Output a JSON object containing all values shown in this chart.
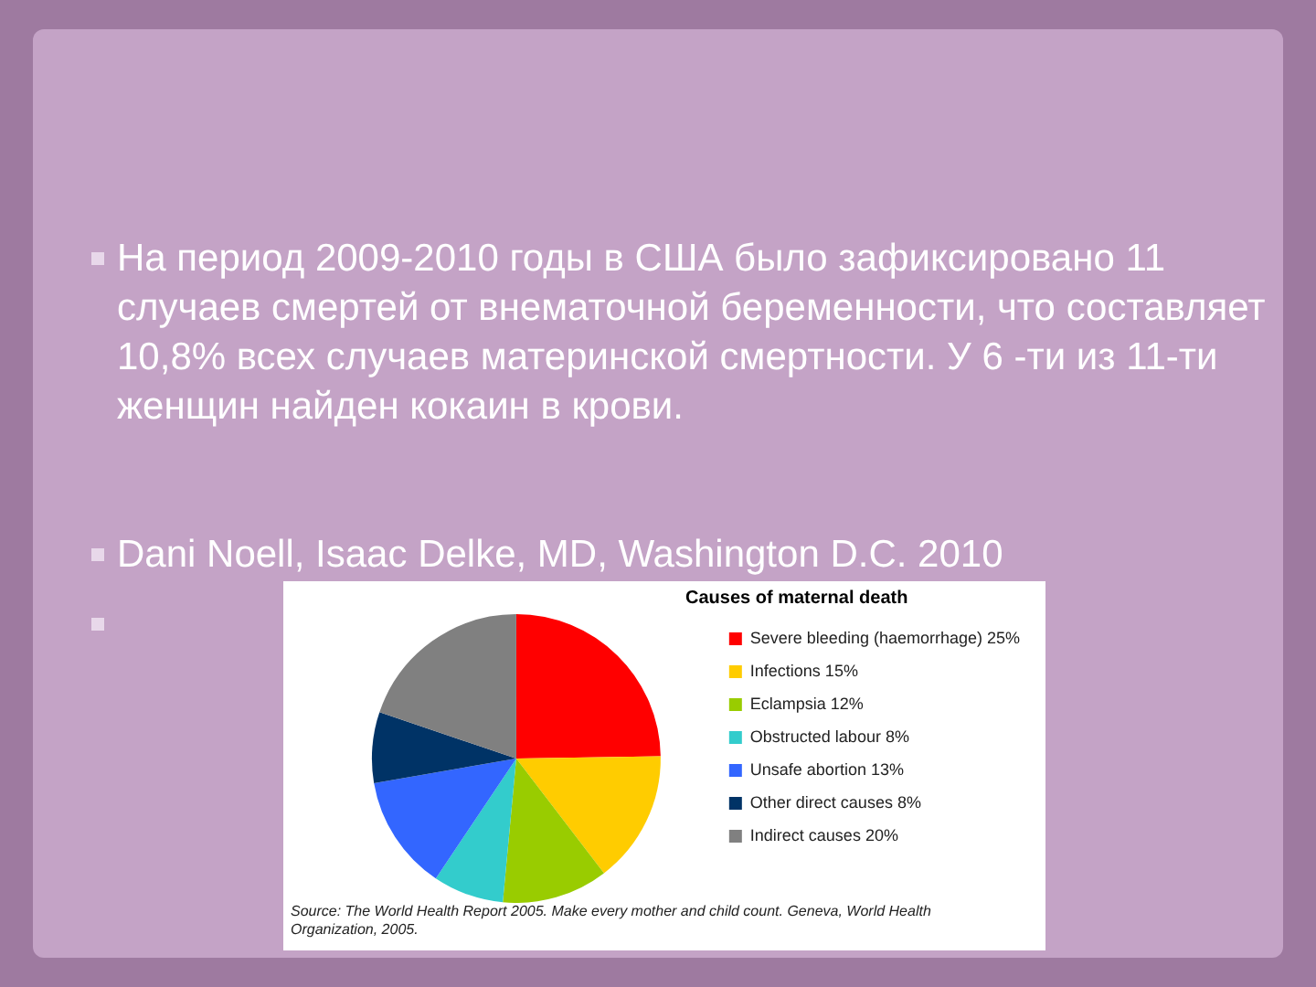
{
  "chart_data": {
    "type": "pie",
    "title": "Causes of maternal death",
    "categories": [
      "Severe bleeding (haemorrhage) 25%",
      "Infections 15%",
      "Eclampsia 12%",
      "Obstructed labour 8%",
      "Unsafe abortion 13%",
      "Other direct causes 8%",
      "Indirect causes 20%"
    ],
    "values": [
      25,
      15,
      12,
      8,
      13,
      8,
      20
    ],
    "colors": [
      "#ff0000",
      "#ffcc00",
      "#99cc00",
      "#33cccc",
      "#3366ff",
      "#003366",
      "#808080"
    ],
    "legend": "right",
    "annotations": [
      "На период  2009-2010 годы в США было зафиксировано 11 случаев смертей  от внематочной беременности, что составляет 10,8% всех случаев материнской смертности.  У 6 -ти из 11-ти женщин найден  кокаин в крови.",
      "Dani Noell, Isaac Delke, MD, Washington D.C. 2010",
      "Source: The World Health Report 2005. Make every mother and child count. Geneva, World Health Organization, 2005."
    ]
  }
}
